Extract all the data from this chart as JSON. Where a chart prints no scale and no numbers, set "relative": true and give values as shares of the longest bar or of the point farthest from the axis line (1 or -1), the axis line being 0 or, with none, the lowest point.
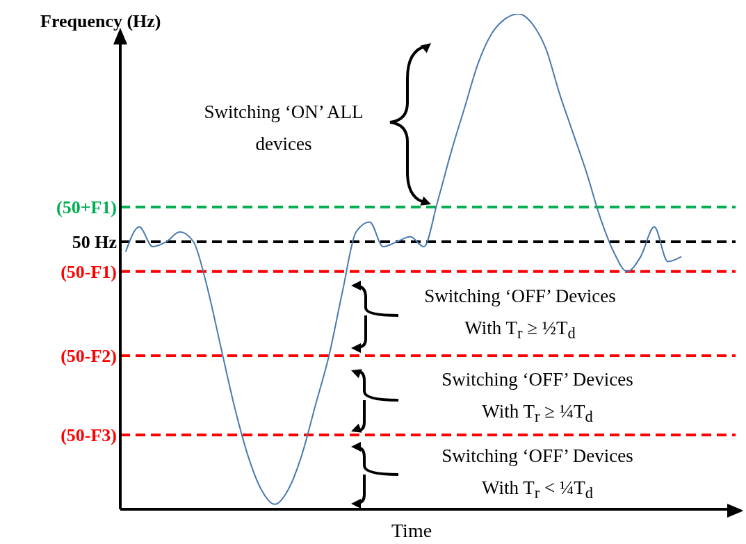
{
  "chart_data": {
    "type": "line",
    "relative": true,
    "xlabel": "Time",
    "ylabel": "Frequency (Hz)",
    "color": "#4a7ab0",
    "categories": [
      null,
      null,
      null,
      null,
      null,
      null,
      null,
      null,
      null,
      null,
      null,
      null,
      null,
      null,
      null,
      null,
      null,
      null,
      null,
      null,
      null,
      null,
      null,
      null,
      null,
      null,
      null,
      null,
      null,
      null,
      null,
      null,
      null,
      null,
      null,
      null,
      null,
      null,
      null,
      null,
      null,
      null
    ],
    "values": [
      0.52,
      0.57,
      0.53,
      0.54,
      0.56,
      0.54,
      0.45,
      0.33,
      0.21,
      0.11,
      0.04,
      0.01,
      0.04,
      0.11,
      0.21,
      0.31,
      0.44,
      0.56,
      0.58,
      0.53,
      0.54,
      0.55,
      0.53,
      0.62,
      0.72,
      0.81,
      0.9,
      0.96,
      0.99,
      1.0,
      0.98,
      0.93,
      0.84,
      0.76,
      0.68,
      0.59,
      0.52,
      0.48,
      0.51,
      0.57,
      0.5,
      0.51
    ],
    "ref_lines": [
      {
        "axis": "y",
        "value": 0.61,
        "label": "(50+F1)",
        "color": "#00b050",
        "line_style": "dashed"
      },
      {
        "axis": "y",
        "value": 0.54,
        "label": "50 Hz",
        "color": "#000000",
        "line_style": "dashed"
      },
      {
        "axis": "y",
        "value": 0.48,
        "label": "(50-F1)",
        "color": "#ff0000",
        "line_style": "dashed"
      },
      {
        "axis": "y",
        "value": 0.31,
        "label": "(50-F2)",
        "color": "#ff0000",
        "line_style": "dashed"
      },
      {
        "axis": "y",
        "value": 0.15,
        "label": "(50-F3)",
        "color": "#ff0000",
        "line_style": "dashed"
      }
    ],
    "annotations": [
      "Switching ‘ON’ ALL devices",
      "Switching ‘OFF’ Devices With T$_{r}$ ≥ ½T$_{d}$",
      "Switching ‘OFF’ Devices With T$_{r}$ ≥ ¼T$_{d}$",
      "Switching ‘OFF’ Devices With T$_{r}$ < ¼T$_{d}$"
    ]
  }
}
